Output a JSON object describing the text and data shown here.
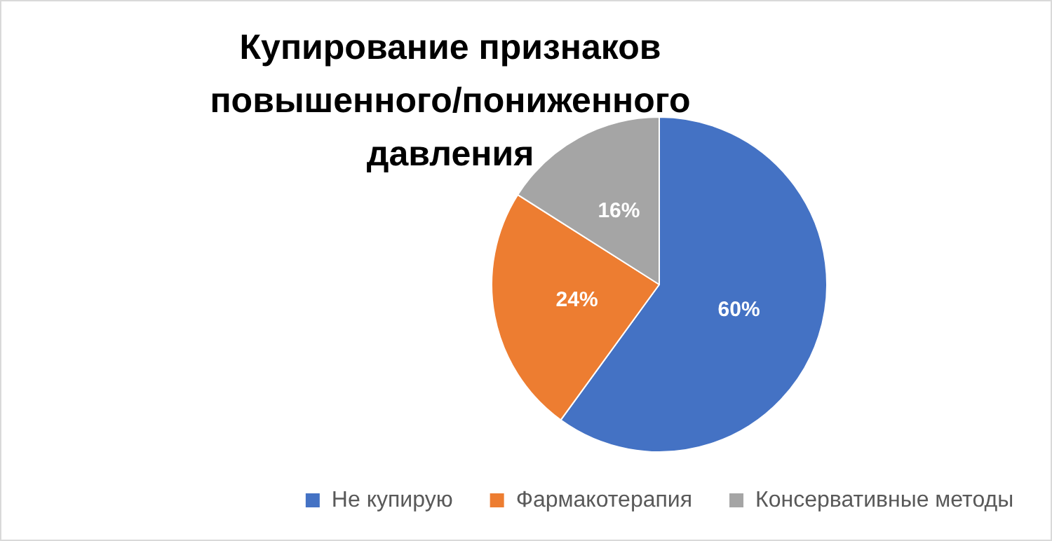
{
  "chart_data": {
    "type": "pie",
    "title": "Купирование признаков\nповышенного/пониженного давления",
    "categories": [
      "Не купирую",
      "Фармакотерапия",
      "Консервативные методы"
    ],
    "values": [
      60,
      24,
      16
    ],
    "colors": [
      "#4472c4",
      "#ed7d31",
      "#a5a5a5"
    ],
    "value_labels": [
      "60%",
      "24%",
      "16%"
    ],
    "legend": "bottom"
  }
}
